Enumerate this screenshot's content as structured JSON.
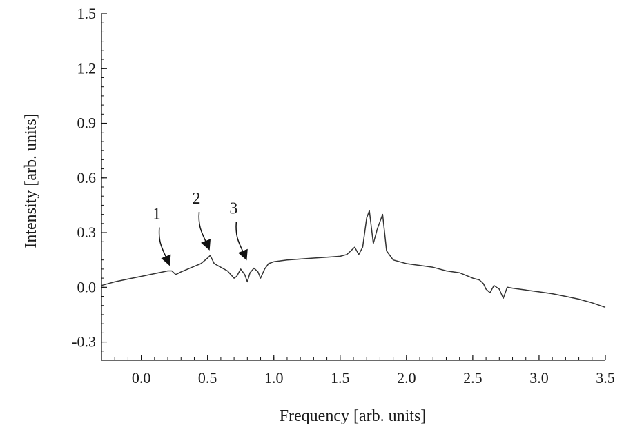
{
  "chart_data": {
    "type": "line",
    "xlabel": "Frequency [arb. units]",
    "ylabel": "Intensity [arb. units]",
    "xlim": [
      -0.3,
      3.5
    ],
    "ylim": [
      -0.4,
      1.5
    ],
    "xticks": [
      0.0,
      0.5,
      1.0,
      1.5,
      2.0,
      2.5,
      3.0,
      3.5
    ],
    "xtick_labels": [
      "0.0",
      "0.5",
      "1.0",
      "1.5",
      "2.0",
      "2.5",
      "3.0",
      "3.5"
    ],
    "yticks": [
      -0.3,
      0.0,
      0.3,
      0.6,
      0.9,
      1.2,
      1.5
    ],
    "ytick_labels": [
      "-0.3",
      "0.0",
      "0.3",
      "0.6",
      "0.9",
      "1.2",
      "1.5"
    ],
    "grid": false,
    "series": [
      {
        "line_color": "#333333",
        "x": [
          -0.3,
          -0.2,
          -0.1,
          0.0,
          0.1,
          0.2,
          0.23,
          0.26,
          0.3,
          0.35,
          0.4,
          0.45,
          0.5,
          0.52,
          0.55,
          0.6,
          0.65,
          0.7,
          0.72,
          0.75,
          0.78,
          0.8,
          0.82,
          0.85,
          0.88,
          0.9,
          0.93,
          0.96,
          1.0,
          1.1,
          1.2,
          1.3,
          1.4,
          1.5,
          1.55,
          1.58,
          1.61,
          1.64,
          1.67,
          1.7,
          1.72,
          1.75,
          1.78,
          1.82,
          1.85,
          1.9,
          2.0,
          2.1,
          2.2,
          2.3,
          2.4,
          2.5,
          2.55,
          2.58,
          2.6,
          2.63,
          2.66,
          2.7,
          2.73,
          2.76,
          2.8,
          2.9,
          3.0,
          3.1,
          3.2,
          3.3,
          3.4,
          3.5
        ],
        "y": [
          0.01,
          0.03,
          0.045,
          0.06,
          0.075,
          0.09,
          0.09,
          0.07,
          0.085,
          0.1,
          0.115,
          0.13,
          0.16,
          0.175,
          0.13,
          0.11,
          0.09,
          0.05,
          0.06,
          0.1,
          0.07,
          0.03,
          0.08,
          0.105,
          0.085,
          0.05,
          0.1,
          0.13,
          0.14,
          0.15,
          0.155,
          0.16,
          0.165,
          0.17,
          0.18,
          0.2,
          0.22,
          0.18,
          0.22,
          0.38,
          0.42,
          0.24,
          0.32,
          0.4,
          0.2,
          0.15,
          0.13,
          0.12,
          0.11,
          0.09,
          0.08,
          0.05,
          0.04,
          0.02,
          -0.01,
          -0.03,
          0.01,
          -0.01,
          -0.06,
          0.0,
          -0.005,
          -0.015,
          -0.025,
          -0.035,
          -0.05,
          -0.065,
          -0.085,
          -0.11
        ]
      }
    ],
    "annotations": [
      {
        "text": "1",
        "at_x": 0.22,
        "at_y": 0.09
      },
      {
        "text": "2",
        "at_x": 0.52,
        "at_y": 0.175
      },
      {
        "text": "3",
        "at_x": 0.8,
        "at_y": 0.12
      }
    ]
  }
}
